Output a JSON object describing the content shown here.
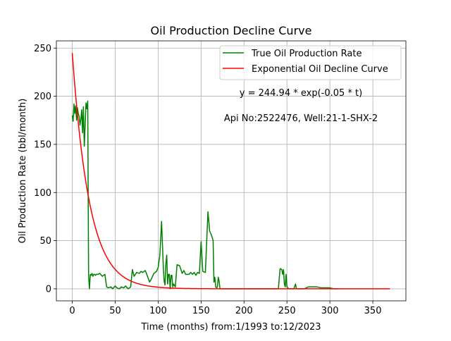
{
  "chart_data": {
    "type": "line",
    "title": "Oil Production Decline Curve",
    "xlabel": "Time (months) from:1/1993 to:12/2023",
    "ylabel": "Oil Production Rate (bbl/month)",
    "xlim": [
      -18.5,
      388.5
    ],
    "ylim": [
      -12.5,
      257.5
    ],
    "xticks": [
      0,
      50,
      100,
      150,
      200,
      250,
      300,
      350
    ],
    "yticks": [
      0,
      50,
      100,
      150,
      200,
      250
    ],
    "grid": true,
    "legend_position": "top-right",
    "annotations": [
      "y = 244.94 * exp(-0.05 * t)",
      "Api No:2522476, Well:21-1-SHX-2"
    ],
    "series": [
      {
        "name": "True Oil Production Rate",
        "color": "#008000",
        "x": [
          0,
          1,
          2,
          3,
          4,
          5,
          6,
          7,
          8,
          9,
          10,
          11,
          12,
          13,
          14,
          15,
          16,
          17,
          18,
          19,
          20,
          21,
          22,
          23,
          24,
          25,
          26,
          27,
          28,
          30,
          32,
          35,
          38,
          40,
          42,
          45,
          47,
          50,
          52,
          55,
          57,
          60,
          62,
          65,
          68,
          70,
          72,
          75,
          78,
          80,
          82,
          85,
          88,
          90,
          92,
          95,
          98,
          100,
          102,
          104,
          106,
          107,
          108,
          109,
          110,
          111,
          112,
          113,
          114,
          115,
          116,
          117,
          118,
          120,
          122,
          125,
          128,
          130,
          132,
          134,
          136,
          138,
          140,
          142,
          144,
          146,
          148,
          150,
          152,
          155,
          158,
          160,
          162,
          164,
          165,
          166,
          167,
          168,
          169,
          170,
          171,
          172,
          173,
          174,
          175,
          176,
          178,
          180,
          182,
          184,
          186,
          188,
          190,
          195,
          200,
          210,
          220,
          230,
          240,
          242,
          244,
          245,
          246,
          247,
          248,
          249,
          250,
          251,
          252,
          253,
          254,
          255,
          256,
          258,
          260,
          261,
          262,
          263,
          264,
          266,
          270,
          275,
          280,
          282,
          285,
          290,
          295,
          300,
          305,
          310
        ],
        "values": [
          180,
          174,
          192,
          182,
          190,
          175,
          188,
          182,
          179,
          170,
          176,
          186,
          162,
          189,
          148,
          170,
          193,
          187,
          195,
          14,
          0,
          15,
          14,
          16,
          13,
          15,
          15,
          14,
          15,
          15,
          16,
          13,
          15,
          2,
          1,
          2,
          0,
          3,
          1,
          0,
          2,
          1,
          3,
          0,
          2,
          20,
          13,
          17,
          16,
          18,
          17,
          19,
          12,
          7,
          10,
          16,
          18,
          22,
          35,
          70,
          23,
          8,
          4,
          26,
          35,
          5,
          15,
          15,
          0,
          14,
          14,
          2,
          5,
          2,
          25,
          24,
          16,
          19,
          15,
          15,
          15,
          17,
          15,
          17,
          14,
          17,
          16,
          49,
          18,
          17,
          80,
          60,
          56,
          50,
          7,
          12,
          2,
          1,
          2,
          12,
          8,
          0,
          0,
          0,
          0,
          0,
          0,
          0,
          0,
          0,
          0,
          0,
          0,
          0,
          0,
          0,
          0,
          0,
          0,
          21,
          20,
          15,
          20,
          5,
          2,
          15,
          2,
          1,
          0,
          0,
          0,
          0,
          0,
          0,
          5,
          0,
          0,
          0,
          0,
          0,
          0,
          2,
          2,
          2,
          2,
          1,
          1,
          1,
          0,
          0
        ]
      },
      {
        "name": "Exponential Oil Decline Curve",
        "color": "#ff0000",
        "equation": {
          "a": 244.94,
          "b": 0.05
        },
        "x_range": [
          0,
          370
        ]
      }
    ]
  }
}
